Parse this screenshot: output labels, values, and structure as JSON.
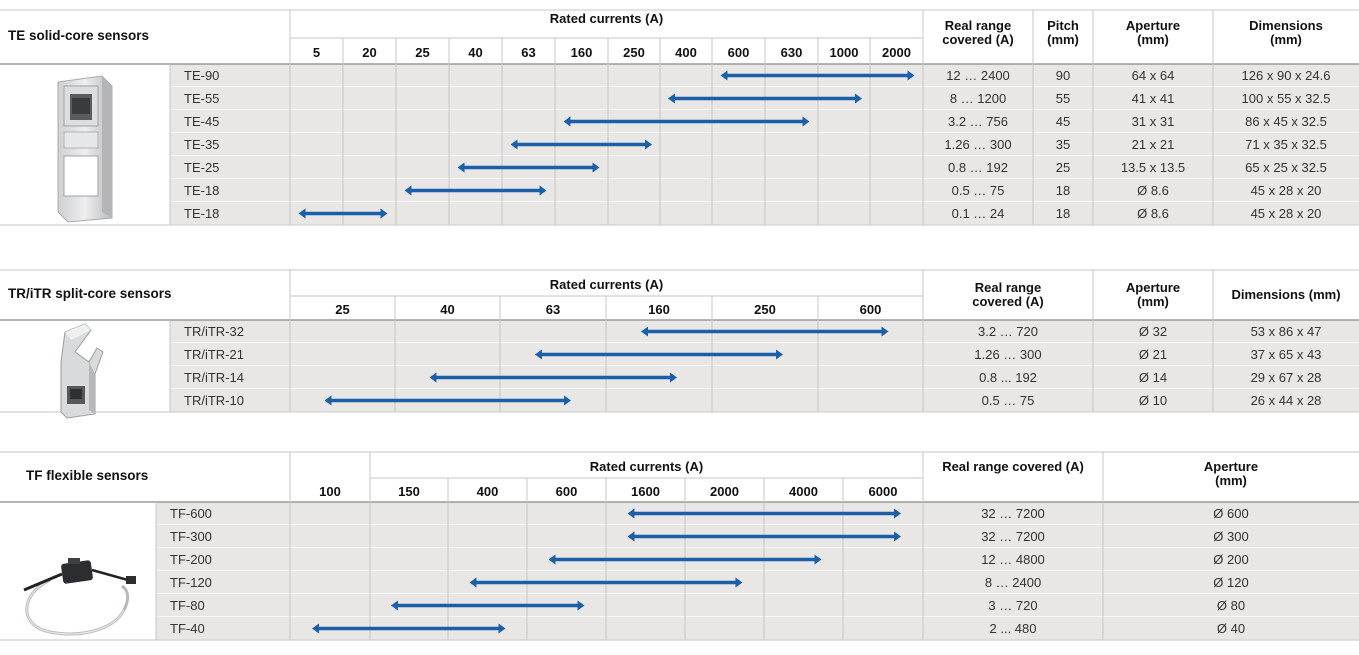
{
  "colors": {
    "arrow": "#1a5fa8",
    "row_shade": "#e9e7e5",
    "grid": "#c8c6c4"
  },
  "sections": [
    {
      "title": "TE solid-core sensors",
      "rated_header": "Rated currents (A)",
      "ticks": [
        "5",
        "20",
        "25",
        "40",
        "63",
        "160",
        "250",
        "400",
        "600",
        "630",
        "1000",
        "2000"
      ],
      "extra_headers": [
        "Real range covered (A)",
        "Pitch (mm)",
        "Aperture (mm)",
        "Dimensions (mm)"
      ],
      "image_icon": "solid-core-sensor-photo",
      "rows": [
        {
          "model": "TE-90",
          "range": [
            8,
            11
          ],
          "cells": [
            "12 … 2400",
            "90",
            "64 x 64",
            "126 x 90 x 24.6"
          ]
        },
        {
          "model": "TE-55",
          "range": [
            7,
            10
          ],
          "cells": [
            "8 … 1200",
            "55",
            "41 x 41",
            "100 x 55 x 32.5"
          ]
        },
        {
          "model": "TE-45",
          "range": [
            5,
            9
          ],
          "cells": [
            "3.2 … 756",
            "45",
            "31 x 31",
            "86 x 45 x 32.5"
          ]
        },
        {
          "model": "TE-35",
          "range": [
            4,
            6
          ],
          "cells": [
            "1.26 … 300",
            "35",
            "21 x 21",
            "71 x 35 x 32.5"
          ]
        },
        {
          "model": "TE-25",
          "range": [
            3,
            5
          ],
          "cells": [
            "0.8 … 192",
            "25",
            "13.5 x 13.5",
            "65 x 25 x 32.5"
          ]
        },
        {
          "model": "TE-18",
          "range": [
            2,
            4
          ],
          "cells": [
            "0.5 … 75",
            "18",
            "Ø 8.6",
            "45 x 28 x 20"
          ]
        },
        {
          "model": "TE-18",
          "range": [
            0,
            1
          ],
          "cells": [
            "0.1 … 24",
            "18",
            "Ø 8.6",
            "45 x 28 x 20"
          ]
        }
      ]
    },
    {
      "title": "TR/iTR split-core sensors",
      "rated_header": "Rated currents (A)",
      "ticks": [
        "25",
        "40",
        "63",
        "160",
        "250",
        "600"
      ],
      "extra_headers": [
        "Real range covered (A)",
        "Aperture (mm)",
        "Dimensions (mm)"
      ],
      "image_icon": "split-core-sensor-photo",
      "rows": [
        {
          "model": "TR/iTR-32",
          "range": [
            3,
            5
          ],
          "cells": [
            "3.2 … 720",
            "Ø 32",
            "53 x 86 x 47"
          ]
        },
        {
          "model": "TR/iTR-21",
          "range": [
            2,
            4
          ],
          "cells": [
            "1.26 … 300",
            "Ø 21",
            "37 x 65 x 43"
          ]
        },
        {
          "model": "TR/iTR-14",
          "range": [
            1,
            3
          ],
          "cells": [
            "0.8 ... 192",
            "Ø 14",
            "29 x 67 x 28"
          ]
        },
        {
          "model": "TR/iTR-10",
          "range": [
            0,
            2
          ],
          "cells": [
            "0.5 … 75",
            "Ø 10",
            "26 x 44 x 28"
          ]
        }
      ]
    },
    {
      "title": "TF flexible sensors",
      "rated_header": "Rated currents (A)",
      "ticks": [
        "100",
        "150",
        "400",
        "600",
        "1600",
        "2000",
        "4000",
        "6000"
      ],
      "extra_headers": [
        "Real range covered (A)",
        "Aperture (mm)"
      ],
      "image_icon": "flexible-sensor-photo",
      "rows": [
        {
          "model": "TF-600",
          "range": [
            4,
            7
          ],
          "cells": [
            "32 … 7200",
            "Ø 600"
          ]
        },
        {
          "model": "TF-300",
          "range": [
            4,
            7
          ],
          "cells": [
            "32 … 7200",
            "Ø 300"
          ]
        },
        {
          "model": "TF-200",
          "range": [
            3,
            6
          ],
          "cells": [
            "12 … 4800",
            "Ø 200"
          ]
        },
        {
          "model": "TF-120",
          "range": [
            2,
            5
          ],
          "cells": [
            "8 … 2400",
            "Ø 120"
          ]
        },
        {
          "model": "TF-80",
          "range": [
            1,
            3
          ],
          "cells": [
            "3 … 720",
            "Ø 80"
          ]
        },
        {
          "model": "TF-40",
          "range": [
            0,
            2
          ],
          "cells": [
            "2 ... 480",
            "Ø 40"
          ]
        }
      ]
    }
  ]
}
